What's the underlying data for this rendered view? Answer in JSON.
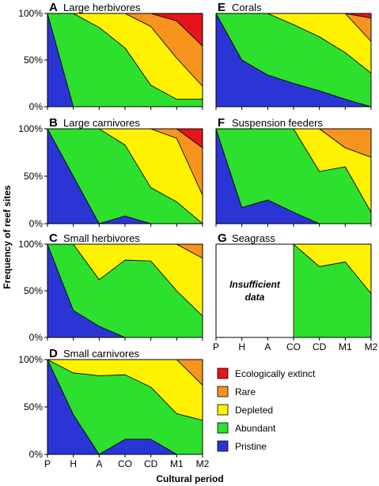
{
  "chart_data": {
    "type": "area",
    "subtype": "stacked-100-percent",
    "xlabel": "Cultural period",
    "ylabel": "Frequency of reef sites",
    "x_categories": [
      "P",
      "H",
      "A",
      "CO",
      "CD",
      "M1",
      "M2"
    ],
    "y_ticks": [
      "0%",
      "50%",
      "100%"
    ],
    "ylim": [
      0,
      100
    ],
    "grid": false,
    "legend": {
      "placement": "bottom-right",
      "items": [
        {
          "name": "Ecologically extinct",
          "color": "#e8141b"
        },
        {
          "name": "Rare",
          "color": "#f7941d"
        },
        {
          "name": "Depleted",
          "color": "#fff200"
        },
        {
          "name": "Abundant",
          "color": "#2ee02e"
        },
        {
          "name": "Pristine",
          "color": "#2b35d6"
        }
      ]
    },
    "series_order": [
      "Pristine",
      "Abundant",
      "Depleted",
      "Rare",
      "Ecologically extinct"
    ],
    "panels": [
      {
        "id": "A",
        "letter": "A",
        "title": "Large herbivores",
        "values": {
          "Pristine": [
            100,
            0,
            0,
            0,
            0,
            0,
            0
          ],
          "Abundant": [
            0,
            100,
            85,
            63,
            23,
            8,
            8
          ],
          "Depleted": [
            0,
            0,
            15,
            37,
            63,
            44,
            14
          ],
          "Rare": [
            0,
            0,
            0,
            0,
            14,
            40,
            43
          ],
          "Ecologically extinct": [
            0,
            0,
            0,
            0,
            0,
            8,
            35
          ]
        }
      },
      {
        "id": "E",
        "letter": "E",
        "title": "Corals",
        "values": {
          "Pristine": [
            100,
            50,
            34,
            25,
            17,
            8,
            0
          ],
          "Abundant": [
            0,
            50,
            66,
            63,
            58,
            50,
            36
          ],
          "Depleted": [
            0,
            0,
            0,
            12,
            25,
            42,
            34
          ],
          "Rare": [
            0,
            0,
            0,
            0,
            0,
            0,
            25
          ],
          "Ecologically extinct": [
            0,
            0,
            0,
            0,
            0,
            0,
            5
          ]
        }
      },
      {
        "id": "B",
        "letter": "B",
        "title": "Large carnivores",
        "values": {
          "Pristine": [
            100,
            50,
            0,
            8,
            0,
            0,
            0
          ],
          "Abundant": [
            0,
            50,
            100,
            75,
            38,
            23,
            0
          ],
          "Depleted": [
            0,
            0,
            0,
            17,
            62,
            67,
            30
          ],
          "Rare": [
            0,
            0,
            0,
            0,
            0,
            10,
            50
          ],
          "Ecologically extinct": [
            0,
            0,
            0,
            0,
            0,
            0,
            20
          ]
        }
      },
      {
        "id": "F",
        "letter": "F",
        "title": "Suspension feeders",
        "values": {
          "Pristine": [
            100,
            17,
            25,
            12,
            0,
            0,
            0
          ],
          "Abundant": [
            0,
            83,
            75,
            88,
            55,
            60,
            12
          ],
          "Depleted": [
            0,
            0,
            0,
            0,
            45,
            20,
            58
          ],
          "Rare": [
            0,
            0,
            0,
            0,
            0,
            20,
            30
          ],
          "Ecologically extinct": [
            0,
            0,
            0,
            0,
            0,
            0,
            0
          ]
        }
      },
      {
        "id": "C",
        "letter": "C",
        "title": "Small herbivores",
        "values": {
          "Pristine": [
            100,
            29,
            12,
            0,
            0,
            0,
            0
          ],
          "Abundant": [
            0,
            71,
            50,
            83,
            82,
            50,
            23
          ],
          "Depleted": [
            0,
            0,
            38,
            17,
            18,
            50,
            62
          ],
          "Rare": [
            0,
            0,
            0,
            0,
            0,
            0,
            15
          ],
          "Ecologically extinct": [
            0,
            0,
            0,
            0,
            0,
            0,
            0
          ]
        }
      },
      {
        "id": "G",
        "letter": "G",
        "title": "Seagrass",
        "note": "Insufficient data",
        "data_start_index": 3,
        "values": {
          "Pristine": [
            null,
            null,
            null,
            0,
            0,
            0,
            0
          ],
          "Abundant": [
            null,
            null,
            null,
            100,
            76,
            81,
            47
          ],
          "Depleted": [
            null,
            null,
            null,
            0,
            24,
            19,
            53
          ],
          "Rare": [
            null,
            null,
            null,
            0,
            0,
            0,
            0
          ],
          "Ecologically extinct": [
            null,
            null,
            null,
            0,
            0,
            0,
            0
          ]
        }
      },
      {
        "id": "D",
        "letter": "D",
        "title": "Small carnivores",
        "values": {
          "Pristine": [
            100,
            42,
            0,
            16,
            16,
            0,
            0
          ],
          "Abundant": [
            0,
            44,
            83,
            68,
            55,
            43,
            36
          ],
          "Depleted": [
            0,
            14,
            17,
            16,
            29,
            57,
            37
          ],
          "Rare": [
            0,
            0,
            0,
            0,
            0,
            0,
            27
          ],
          "Ecologically extinct": [
            0,
            0,
            0,
            0,
            0,
            0,
            0
          ]
        }
      }
    ]
  }
}
